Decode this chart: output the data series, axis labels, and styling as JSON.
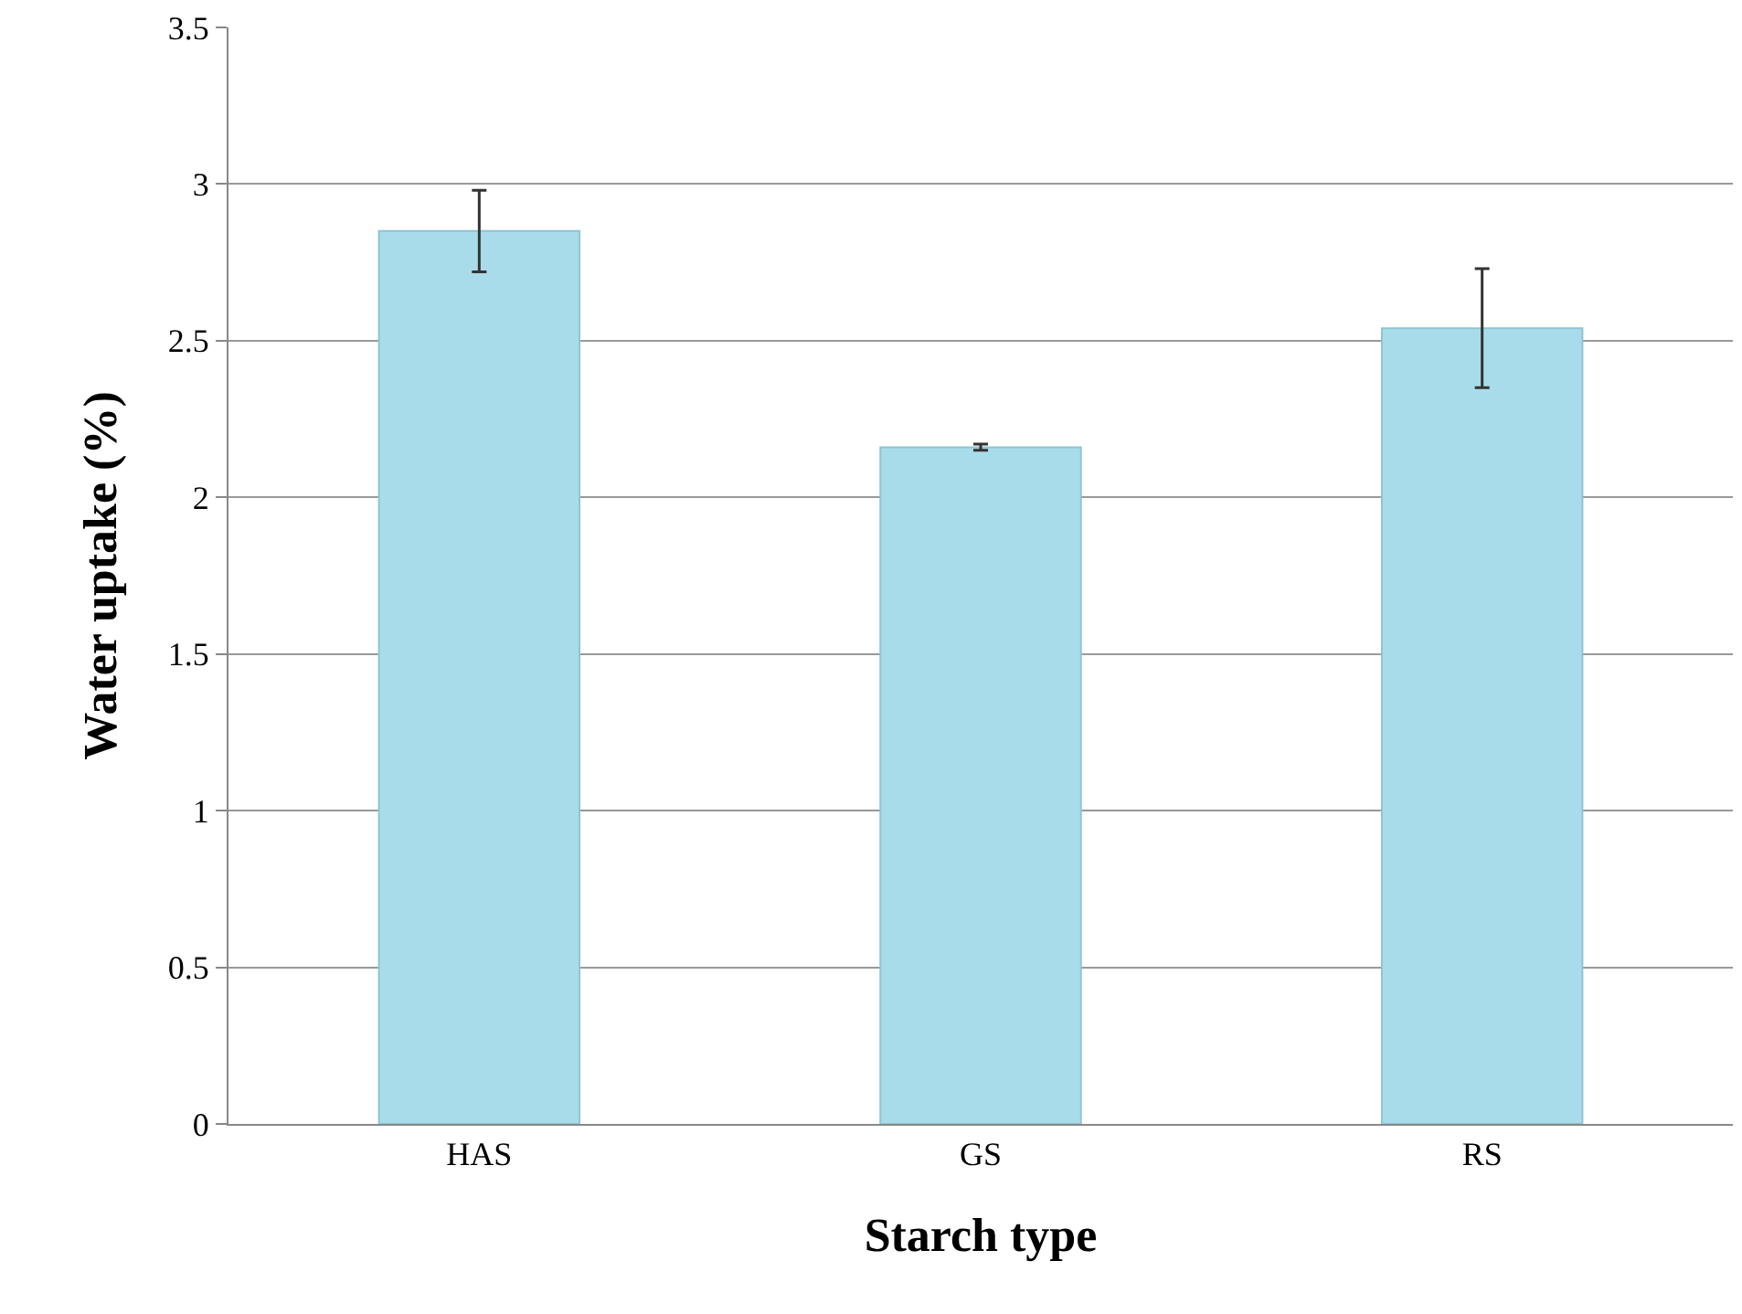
{
  "chart_data": {
    "type": "bar",
    "xlabel": "Starch type",
    "ylabel": "Water uptake (%)",
    "categories": [
      "HAS",
      "GS",
      "RS"
    ],
    "values": [
      2.85,
      2.16,
      2.54
    ],
    "errors": [
      0.13,
      0.01,
      0.19
    ],
    "color": "#a9dcea",
    "ylim": [
      0,
      3.5
    ],
    "yticks": [
      0,
      0.5,
      1,
      1.5,
      2,
      2.5,
      3,
      3.5
    ],
    "grid": "y"
  }
}
